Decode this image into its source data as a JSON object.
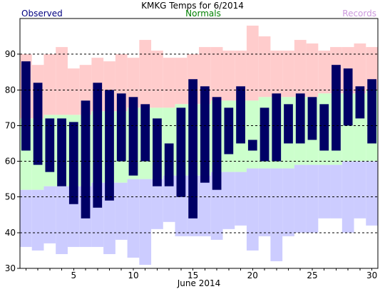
{
  "chart_data": {
    "type": "bar",
    "title": "KMKG Temps for 6/2014",
    "xlabel": "June 2014",
    "ylabel": "",
    "ylim": [
      30,
      100
    ],
    "yticks": [
      30,
      40,
      50,
      60,
      70,
      80,
      90
    ],
    "xticks": [
      5,
      10,
      15,
      20,
      25,
      30
    ],
    "grid": "dashed horizontal",
    "legend": {
      "observed": "Observed",
      "normals": "Normals",
      "records": "Records"
    },
    "colors": {
      "observed": "#000066",
      "normals": "#ccffcc",
      "records_high": "#ffcccc",
      "records_low": "#ccccff",
      "legend_observed": "#000080",
      "legend_normals": "#008000",
      "legend_records": "#cc99dd"
    },
    "days": [
      1,
      2,
      3,
      4,
      5,
      6,
      7,
      8,
      9,
      10,
      11,
      12,
      13,
      14,
      15,
      16,
      17,
      18,
      19,
      20,
      21,
      22,
      23,
      24,
      25,
      26,
      27,
      28,
      29,
      30
    ],
    "series": [
      {
        "name": "Observed",
        "low": [
          63,
          59,
          57,
          53,
          48,
          44,
          47,
          49,
          60,
          56,
          60,
          53,
          53,
          50,
          44,
          54,
          52,
          62,
          65,
          63,
          60,
          60,
          65,
          65,
          66,
          63,
          63,
          70,
          72,
          65
        ],
        "high": [
          88,
          82,
          72,
          72,
          71,
          77,
          82,
          80,
          79,
          78,
          76,
          72,
          65,
          75,
          83,
          81,
          78,
          75,
          81,
          66,
          75,
          79,
          76,
          79,
          78,
          76,
          87,
          86,
          81,
          83
        ]
      },
      {
        "name": "Normals",
        "low": [
          52,
          52,
          53,
          53,
          53,
          53,
          54,
          54,
          54,
          55,
          55,
          55,
          56,
          56,
          56,
          56,
          57,
          57,
          57,
          58,
          58,
          58,
          58,
          59,
          59,
          59,
          59,
          60,
          60,
          60
        ],
        "high": [
          72,
          72,
          73,
          73,
          73,
          73,
          74,
          74,
          74,
          75,
          75,
          75,
          75,
          76,
          76,
          76,
          77,
          77,
          77,
          77,
          78,
          78,
          78,
          78,
          78,
          79,
          79,
          79,
          79,
          80
        ]
      },
      {
        "name": "Records",
        "low": [
          36,
          35,
          37,
          34,
          36,
          36,
          36,
          34,
          38,
          33,
          31,
          41,
          43,
          39,
          39,
          39,
          38,
          41,
          42,
          35,
          39,
          32,
          39,
          40,
          40,
          44,
          44,
          40,
          44,
          42
        ],
        "high": [
          90,
          87,
          90,
          92,
          86,
          87,
          89,
          88,
          90,
          89,
          94,
          91,
          89,
          89,
          90,
          92,
          92,
          91,
          91,
          98,
          95,
          91,
          91,
          94,
          93,
          91,
          92,
          92,
          93,
          92
        ]
      }
    ]
  }
}
